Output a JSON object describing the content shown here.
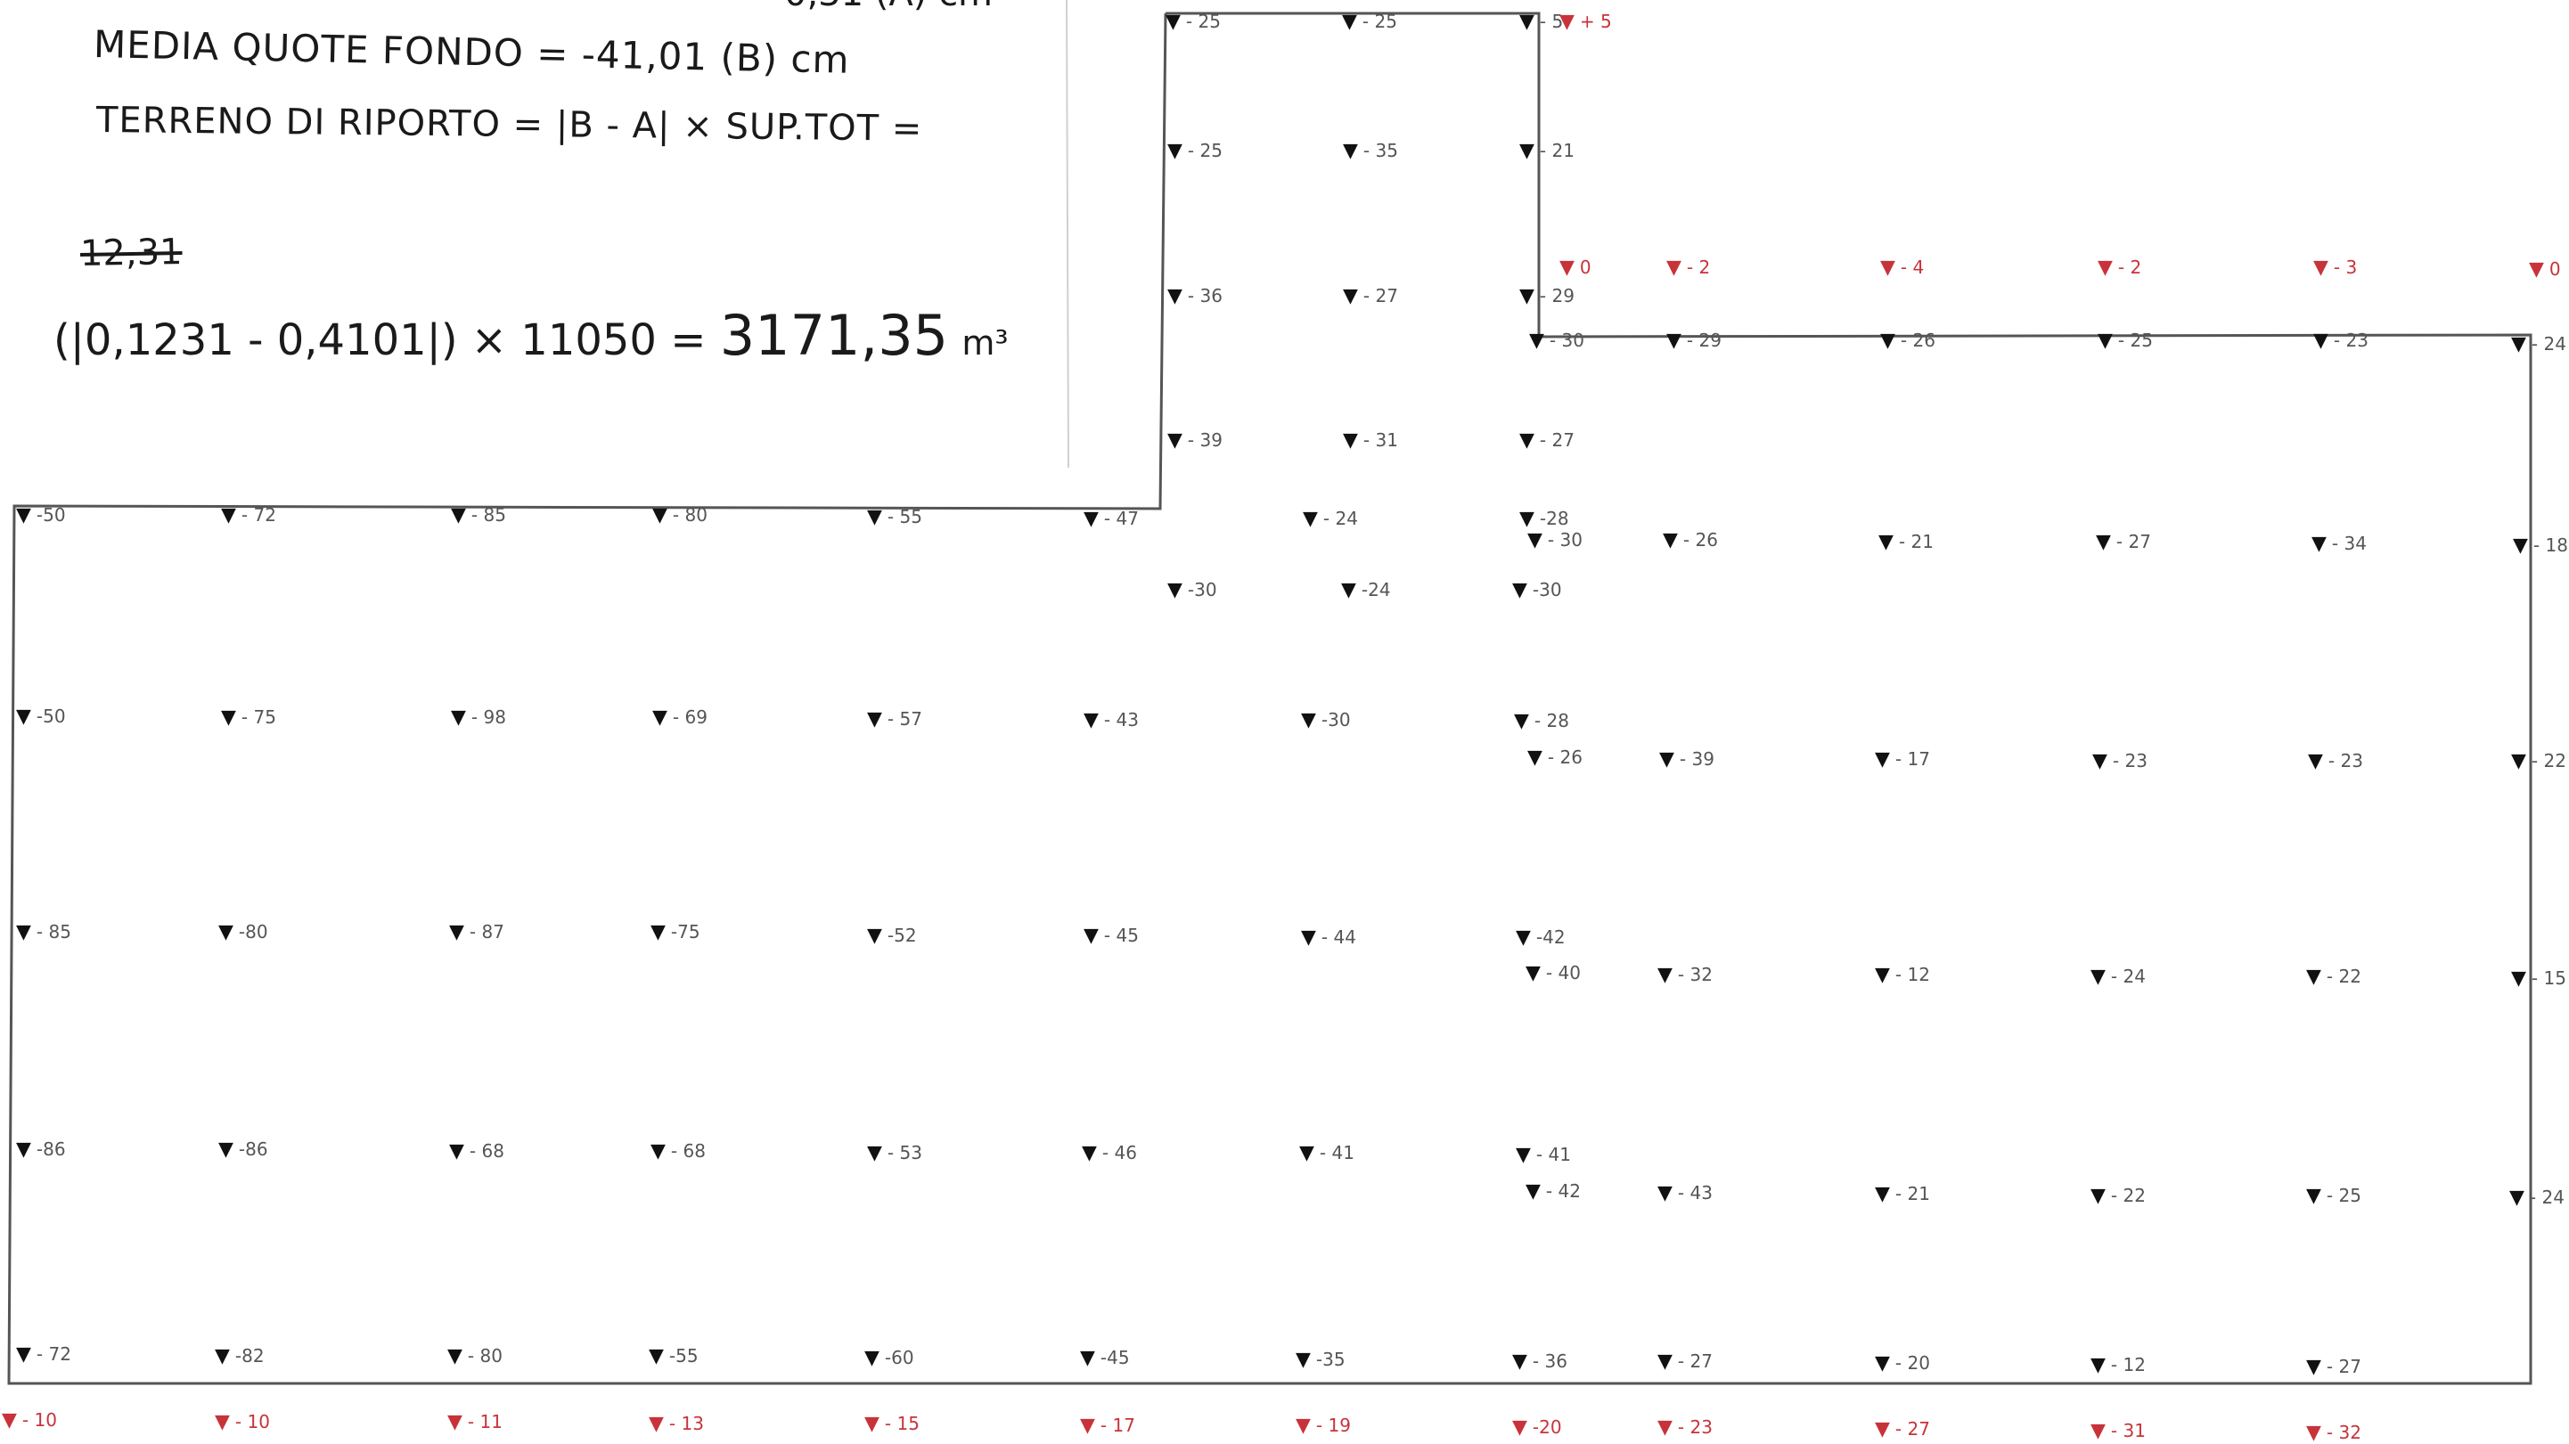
{
  "handwritten_note": {
    "cropped_top_line": "0,31 (A) cm",
    "line_media_quote": "MEDIA QUOTE FONDO = -41,01 (B) cm",
    "line_terreno": "TERRENO DI RIPORTO = |B - A| × SUP.TOT =",
    "crossed_out": "12,31",
    "calculation": "(|0,1231 - 0,4101|) × 11050 =",
    "result": "3171,35",
    "result_unit": "m³"
  },
  "colors": {
    "outline": "#555555",
    "existing_level_marker": "#111111",
    "reference_level_marker": "#c8333a",
    "paper": "#ffffff"
  },
  "survey_points": [
    {
      "value": "- 25",
      "color": "dark"
    },
    {
      "value": "- 25",
      "color": "dark"
    },
    {
      "value": "- 5",
      "color": "dark"
    },
    {
      "value": "+ 5",
      "color": "red"
    },
    {
      "value": "- 25",
      "color": "dark"
    },
    {
      "value": "- 35",
      "color": "dark"
    },
    {
      "value": "- 21",
      "color": "dark"
    },
    {
      "value": "- 36",
      "color": "dark"
    },
    {
      "value": "- 27",
      "color": "dark"
    },
    {
      "value": "- 29",
      "color": "dark"
    },
    {
      "value": "0",
      "color": "red"
    },
    {
      "value": "- 2",
      "color": "red"
    },
    {
      "value": "- 4",
      "color": "red"
    },
    {
      "value": "- 2",
      "color": "red"
    },
    {
      "value": "- 3",
      "color": "red"
    },
    {
      "value": "0",
      "color": "red"
    },
    {
      "value": "- 30",
      "color": "dark"
    },
    {
      "value": "- 29",
      "color": "dark"
    },
    {
      "value": "- 26",
      "color": "dark"
    },
    {
      "value": "- 25",
      "color": "dark"
    },
    {
      "value": "- 23",
      "color": "dark"
    },
    {
      "value": "- 24",
      "color": "dark"
    },
    {
      "value": "- 39",
      "color": "dark"
    },
    {
      "value": "- 31",
      "color": "dark"
    },
    {
      "value": "- 27",
      "color": "dark"
    },
    {
      "value": "-50",
      "color": "dark"
    },
    {
      "value": "- 72",
      "color": "dark"
    },
    {
      "value": "- 85",
      "color": "dark"
    },
    {
      "value": "- 80",
      "color": "dark"
    },
    {
      "value": "- 55",
      "color": "dark"
    },
    {
      "value": "- 47",
      "color": "dark"
    },
    {
      "value": "- 24",
      "color": "dark"
    },
    {
      "value": "-28",
      "color": "dark"
    },
    {
      "value": "- 30",
      "color": "dark"
    },
    {
      "value": "- 26",
      "color": "dark"
    },
    {
      "value": "- 21",
      "color": "dark"
    },
    {
      "value": "- 27",
      "color": "dark"
    },
    {
      "value": "- 34",
      "color": "dark"
    },
    {
      "value": "- 18",
      "color": "dark"
    },
    {
      "value": "-30",
      "color": "dark"
    },
    {
      "value": "-24",
      "color": "dark"
    },
    {
      "value": "-30",
      "color": "dark"
    },
    {
      "value": "-50",
      "color": "dark"
    },
    {
      "value": "- 75",
      "color": "dark"
    },
    {
      "value": "- 98",
      "color": "dark"
    },
    {
      "value": "- 69",
      "color": "dark"
    },
    {
      "value": "- 57",
      "color": "dark"
    },
    {
      "value": "- 43",
      "color": "dark"
    },
    {
      "value": "-30",
      "color": "dark"
    },
    {
      "value": "- 28",
      "color": "dark"
    },
    {
      "value": "- 26",
      "color": "dark"
    },
    {
      "value": "- 39",
      "color": "dark"
    },
    {
      "value": "- 17",
      "color": "dark"
    },
    {
      "value": "- 23",
      "color": "dark"
    },
    {
      "value": "- 23",
      "color": "dark"
    },
    {
      "value": "- 22",
      "color": "dark"
    },
    {
      "value": "- 85",
      "color": "dark"
    },
    {
      "value": "-80",
      "color": "dark"
    },
    {
      "value": "- 87",
      "color": "dark"
    },
    {
      "value": "-75",
      "color": "dark"
    },
    {
      "value": "-52",
      "color": "dark"
    },
    {
      "value": "- 45",
      "color": "dark"
    },
    {
      "value": "- 44",
      "color": "dark"
    },
    {
      "value": "-42",
      "color": "dark"
    },
    {
      "value": "- 40",
      "color": "dark"
    },
    {
      "value": "- 32",
      "color": "dark"
    },
    {
      "value": "- 12",
      "color": "dark"
    },
    {
      "value": "- 24",
      "color": "dark"
    },
    {
      "value": "- 22",
      "color": "dark"
    },
    {
      "value": "- 15",
      "color": "dark"
    },
    {
      "value": "-86",
      "color": "dark"
    },
    {
      "value": "-86",
      "color": "dark"
    },
    {
      "value": "- 68",
      "color": "dark"
    },
    {
      "value": "- 68",
      "color": "dark"
    },
    {
      "value": "- 53",
      "color": "dark"
    },
    {
      "value": "- 46",
      "color": "dark"
    },
    {
      "value": "- 41",
      "color": "dark"
    },
    {
      "value": "- 41",
      "color": "dark"
    },
    {
      "value": "- 42",
      "color": "dark"
    },
    {
      "value": "- 43",
      "color": "dark"
    },
    {
      "value": "- 21",
      "color": "dark"
    },
    {
      "value": "- 22",
      "color": "dark"
    },
    {
      "value": "- 25",
      "color": "dark"
    },
    {
      "value": "- 24",
      "color": "dark"
    },
    {
      "value": "- 72",
      "color": "dark"
    },
    {
      "value": "-82",
      "color": "dark"
    },
    {
      "value": "- 80",
      "color": "dark"
    },
    {
      "value": "-55",
      "color": "dark"
    },
    {
      "value": "-60",
      "color": "dark"
    },
    {
      "value": "-45",
      "color": "dark"
    },
    {
      "value": "-35",
      "color": "dark"
    },
    {
      "value": "- 36",
      "color": "dark"
    },
    {
      "value": "- 27",
      "color": "dark"
    },
    {
      "value": "- 20",
      "color": "dark"
    },
    {
      "value": "- 12",
      "color": "dark"
    },
    {
      "value": "- 27",
      "color": "dark"
    },
    {
      "value": "- 10",
      "color": "red"
    },
    {
      "value": "- 10",
      "color": "red"
    },
    {
      "value": "- 11",
      "color": "red"
    },
    {
      "value": "- 13",
      "color": "red"
    },
    {
      "value": "- 15",
      "color": "red"
    },
    {
      "value": "- 17",
      "color": "red"
    },
    {
      "value": "- 19",
      "color": "red"
    },
    {
      "value": "-20",
      "color": "red"
    },
    {
      "value": "- 23",
      "color": "red"
    },
    {
      "value": "- 27",
      "color": "red"
    },
    {
      "value": "- 31",
      "color": "red"
    },
    {
      "value": "- 32",
      "color": "red"
    }
  ]
}
